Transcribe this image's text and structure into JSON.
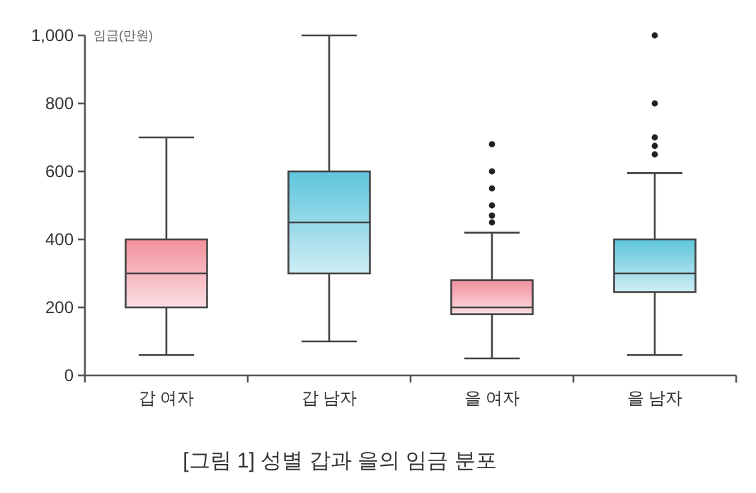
{
  "chart_data": {
    "type": "box",
    "title": "[그림 1] 성별 갑과 을의 임금 분포",
    "ylabel": "임금(만원)",
    "categories": [
      "갑 여자",
      "갑 남자",
      "을 여자",
      "을 남자"
    ],
    "colors": [
      "#f2909d",
      "#5ec5dc",
      "#f2909d",
      "#5ec5dc"
    ],
    "boxes": [
      {
        "low": 60,
        "q1": 200,
        "median": 300,
        "q3": 400,
        "high": 700
      },
      {
        "low": 100,
        "q1": 300,
        "median": 450,
        "q3": 600,
        "high": 1000
      },
      {
        "low": 50,
        "q1": 180,
        "median": 200,
        "q3": 280,
        "high": 420,
        "outliers": [
          450,
          470,
          500,
          550,
          600,
          680
        ]
      },
      {
        "low": 60,
        "q1": 245,
        "median": 300,
        "q3": 400,
        "high": 595,
        "outliers": [
          650,
          675,
          700,
          800,
          1000
        ]
      }
    ],
    "ylim": [
      0,
      1000
    ],
    "yticks": [
      0,
      200,
      400,
      600,
      800,
      {
        "value": 1000,
        "label": "1,000"
      }
    ],
    "grid": false
  }
}
